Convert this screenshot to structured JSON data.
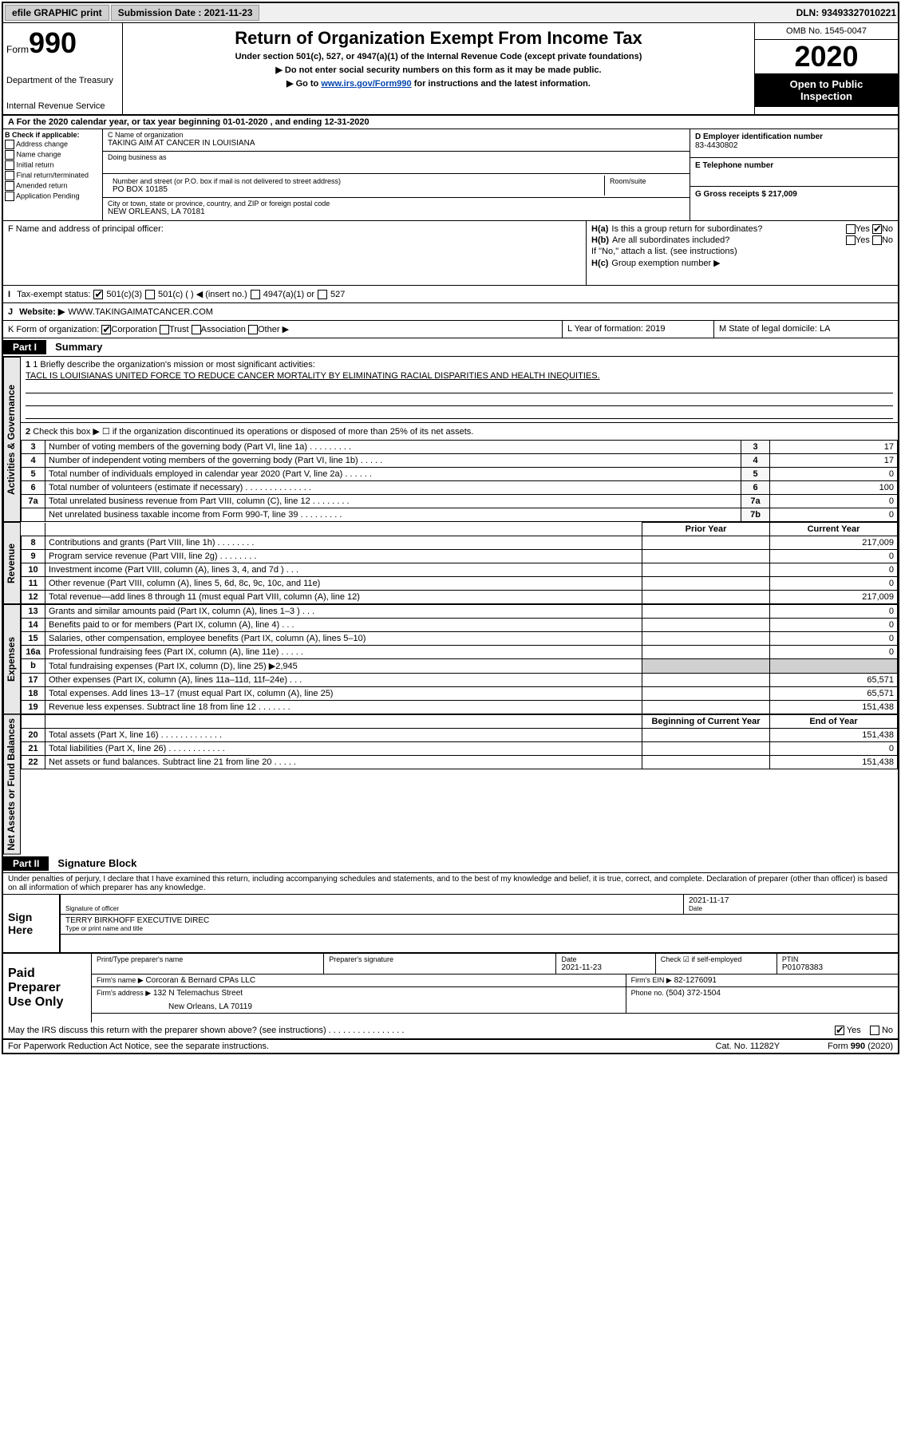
{
  "topbar": {
    "efile": "efile GRAPHIC print",
    "submission_label": "Submission Date : 2021-11-23",
    "dln": "DLN: 93493327010221"
  },
  "header": {
    "form_word": "Form",
    "form_number": "990",
    "dept1": "Department of the Treasury",
    "dept2": "Internal Revenue Service",
    "title": "Return of Organization Exempt From Income Tax",
    "subtitle": "Under section 501(c), 527, or 4947(a)(1) of the Internal Revenue Code (except private foundations)",
    "instr1": "Do not enter social security numbers on this form as it may be made public.",
    "instr2_pre": "Go to ",
    "instr2_link": "www.irs.gov/Form990",
    "instr2_post": " for instructions and the latest information.",
    "omb": "OMB No. 1545-0047",
    "year": "2020",
    "public1": "Open to Public",
    "public2": "Inspection"
  },
  "rowA": "A For the 2020 calendar year, or tax year beginning 01-01-2020   , and ending 12-31-2020",
  "boxB": {
    "label": "B Check if applicable:",
    "items": [
      "Address change",
      "Name change",
      "Initial return",
      "Final return/terminated",
      "Amended return",
      "Application Pending"
    ]
  },
  "boxC": {
    "name_label": "C Name of organization",
    "name": "TAKING AIM AT CANCER IN LOUISIANA",
    "dba_label": "Doing business as",
    "addr_label": "Number and street (or P.O. box if mail is not delivered to street address)",
    "room_label": "Room/suite",
    "addr": "PO BOX 10185",
    "city_label": "City or town, state or province, country, and ZIP or foreign postal code",
    "city": "NEW ORLEANS, LA  70181"
  },
  "boxD": {
    "ein_label": "D Employer identification number",
    "ein": "83-4430802",
    "phone_label": "E Telephone number",
    "gross_label": "G Gross receipts $ 217,009"
  },
  "boxF": {
    "label": "F Name and address of principal officer:"
  },
  "boxH": {
    "ha_label": "H(a)",
    "ha_text": "Is this a group return for subordinates?",
    "hb_label": "H(b)",
    "hb_text": "Are all subordinates included?",
    "hb_note": "If \"No,\" attach a list. (see instructions)",
    "hc_label": "H(c)",
    "hc_text": "Group exemption number ▶",
    "yes": "Yes",
    "no": "No"
  },
  "rowI": {
    "label": "I",
    "text": "Tax-exempt status:",
    "opt1": "501(c)(3)",
    "opt2": "501(c) (  ) ◀ (insert no.)",
    "opt3": "4947(a)(1) or",
    "opt4": "527"
  },
  "rowJ": {
    "label": "J",
    "text": "Website: ▶",
    "value": "WWW.TAKINGAIMATCANCER.COM"
  },
  "rowK": {
    "label": "K Form of organization:",
    "opt1": "Corporation",
    "opt2": "Trust",
    "opt3": "Association",
    "opt4": "Other ▶"
  },
  "rowL": {
    "label": "L Year of formation: 2019"
  },
  "rowM": {
    "label": "M State of legal domicile: LA"
  },
  "part1": {
    "header": "Part I",
    "title": "Summary",
    "vert1": "Activities & Governance",
    "vert2": "Revenue",
    "vert3": "Expenses",
    "vert4": "Net Assets or Fund Balances",
    "q1": "1  Briefly describe the organization's mission or most significant activities:",
    "a1": "TACL IS LOUISIANAS UNITED FORCE TO REDUCE CANCER MORTALITY BY ELIMINATING RACIAL DISPARITIES AND HEALTH INEQUITIES.",
    "q2": "Check this box ▶ ☐ if the organization discontinued its operations or disposed of more than 25% of its net assets.",
    "rows_ag": [
      {
        "n": "3",
        "d": "Number of voting members of the governing body (Part VI, line 1a)   .   .   .   .   .   .   .   .   .",
        "b": "3",
        "v": "17"
      },
      {
        "n": "4",
        "d": "Number of independent voting members of the governing body (Part VI, line 1b)   .   .   .   .   .",
        "b": "4",
        "v": "17"
      },
      {
        "n": "5",
        "d": "Total number of individuals employed in calendar year 2020 (Part V, line 2a)   .   .   .   .   .   .",
        "b": "5",
        "v": "0"
      },
      {
        "n": "6",
        "d": "Total number of volunteers (estimate if necessary)   .   .   .   .   .   .   .   .   .   .   .   .   .   .",
        "b": "6",
        "v": "100"
      },
      {
        "n": "7a",
        "d": "Total unrelated business revenue from Part VIII, column (C), line 12   .   .   .   .   .   .   .   .",
        "b": "7a",
        "v": "0"
      },
      {
        "n": "",
        "d": "Net unrelated business taxable income from Form 990-T, line 39   .   .   .   .   .   .   .   .   .",
        "b": "7b",
        "v": "0"
      }
    ],
    "hdr_prior": "Prior Year",
    "hdr_current": "Current Year",
    "rows_rev": [
      {
        "n": "8",
        "d": "Contributions and grants (Part VIII, line 1h)   .   .   .   .   .   .   .   .",
        "p": "",
        "c": "217,009"
      },
      {
        "n": "9",
        "d": "Program service revenue (Part VIII, line 2g)   .   .   .   .   .   .   .   .",
        "p": "",
        "c": "0"
      },
      {
        "n": "10",
        "d": "Investment income (Part VIII, column (A), lines 3, 4, and 7d )   .   .   .",
        "p": "",
        "c": "0"
      },
      {
        "n": "11",
        "d": "Other revenue (Part VIII, column (A), lines 5, 6d, 8c, 9c, 10c, and 11e)",
        "p": "",
        "c": "0"
      },
      {
        "n": "12",
        "d": "Total revenue—add lines 8 through 11 (must equal Part VIII, column (A), line 12)",
        "p": "",
        "c": "217,009"
      }
    ],
    "rows_exp": [
      {
        "n": "13",
        "d": "Grants and similar amounts paid (Part IX, column (A), lines 1–3 )   .   .   .",
        "p": "",
        "c": "0"
      },
      {
        "n": "14",
        "d": "Benefits paid to or for members (Part IX, column (A), line 4)   .   .   .",
        "p": "",
        "c": "0"
      },
      {
        "n": "15",
        "d": "Salaries, other compensation, employee benefits (Part IX, column (A), lines 5–10)",
        "p": "",
        "c": "0"
      },
      {
        "n": "16a",
        "d": "Professional fundraising fees (Part IX, column (A), line 11e)   .   .   .   .   .",
        "p": "",
        "c": "0"
      },
      {
        "n": "b",
        "d": "Total fundraising expenses (Part IX, column (D), line 25) ▶2,945",
        "p": "",
        "c": ""
      },
      {
        "n": "17",
        "d": "Other expenses (Part IX, column (A), lines 11a–11d, 11f–24e)   .   .   .",
        "p": "",
        "c": "65,571"
      },
      {
        "n": "18",
        "d": "Total expenses. Add lines 13–17 (must equal Part IX, column (A), line 25)",
        "p": "",
        "c": "65,571"
      },
      {
        "n": "19",
        "d": "Revenue less expenses. Subtract line 18 from line 12   .   .   .   .   .   .   .",
        "p": "",
        "c": "151,438"
      }
    ],
    "hdr_begin": "Beginning of Current Year",
    "hdr_end": "End of Year",
    "rows_net": [
      {
        "n": "20",
        "d": "Total assets (Part X, line 16)   .   .   .   .   .   .   .   .   .   .   .   .   .",
        "p": "",
        "c": "151,438"
      },
      {
        "n": "21",
        "d": "Total liabilities (Part X, line 26)   .   .   .   .   .   .   .   .   .   .   .   .",
        "p": "",
        "c": "0"
      },
      {
        "n": "22",
        "d": "Net assets or fund balances. Subtract line 21 from line 20   .   .   .   .   .",
        "p": "",
        "c": "151,438"
      }
    ]
  },
  "part2": {
    "header": "Part II",
    "title": "Signature Block",
    "decl": "Under penalties of perjury, I declare that I have examined this return, including accompanying schedules and statements, and to the best of my knowledge and belief, it is true, correct, and complete. Declaration of preparer (other than officer) is based on all information of which preparer has any knowledge.",
    "sign_here": "Sign Here",
    "sig_officer": "Signature of officer",
    "sig_date_label": "Date",
    "sig_date": "2021-11-17",
    "sig_name": "TERRY BIRKHOFF EXECUTIVE DIREC",
    "sig_name_label": "Type or print name and title",
    "paid": "Paid Preparer Use Only",
    "prep_name_label": "Print/Type preparer's name",
    "prep_sig_label": "Preparer's signature",
    "prep_date_label": "Date",
    "prep_date": "2021-11-23",
    "prep_check_label": "Check ☑ if self-employed",
    "ptin_label": "PTIN",
    "ptin": "P01078383",
    "firm_name_label": "Firm's name   ▶",
    "firm_name": "Corcoran & Bernard CPAs LLC",
    "firm_ein_label": "Firm's EIN ▶",
    "firm_ein": "82-1276091",
    "firm_addr_label": "Firm's address ▶",
    "firm_addr1": "132 N Telemachus Street",
    "firm_addr2": "New Orleans, LA  70119",
    "firm_phone_label": "Phone no.",
    "firm_phone": "(504) 372-1504",
    "discuss": "May the IRS discuss this return with the preparer shown above? (see instructions)   .   .   .   .   .   .   .   .   .   .   .   .   .   .   .   .",
    "discuss_yes": "Yes",
    "discuss_no": "No"
  },
  "footer": {
    "left": "For Paperwork Reduction Act Notice, see the separate instructions.",
    "cat": "Cat. No. 11282Y",
    "right": "Form 990 (2020)"
  },
  "colors": {
    "black": "#000000",
    "link": "#0645ad",
    "gray_bg": "#e8e8e8"
  }
}
